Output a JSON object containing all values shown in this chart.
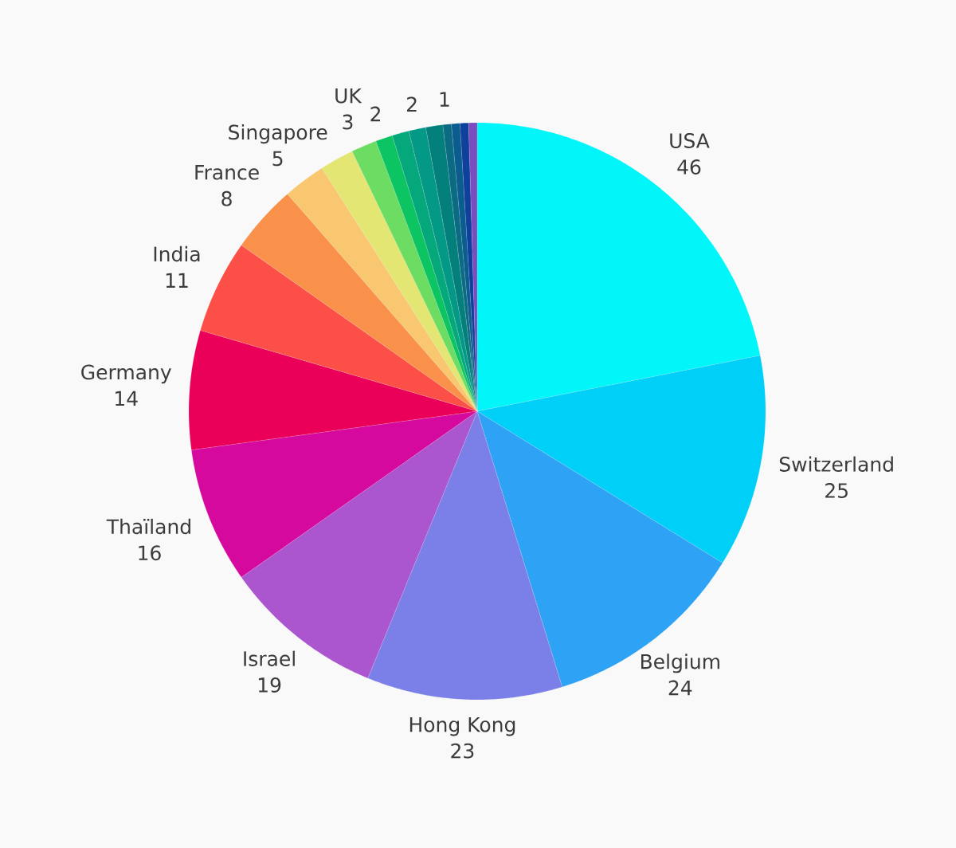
{
  "chart_data": {
    "type": "pie",
    "categories": [
      "USA",
      "Switzerland",
      "Belgium",
      "Hong Kong",
      "Israel",
      "Thaïland",
      "Germany",
      "India",
      "France",
      "Singapore",
      null,
      "UK",
      null,
      null,
      null,
      null,
      null,
      null,
      null,
      null
    ],
    "values": [
      46,
      25,
      24,
      23,
      19,
      16,
      14,
      11,
      8,
      5,
      4,
      3,
      2,
      2,
      2,
      2,
      1,
      1,
      1,
      1
    ],
    "value_labels": [
      "46",
      "25",
      "24",
      "23",
      "19",
      "16",
      "14",
      "11",
      "8",
      "5",
      null,
      "3",
      "2",
      null,
      "2",
      null,
      "1",
      null,
      null,
      null
    ],
    "colors": [
      "#00f6f8",
      "#00cff8",
      "#2ea3f5",
      "#7b80e8",
      "#ab56ce",
      "#d5099e",
      "#ea0058",
      "#fb4f47",
      "#f9914b",
      "#f8c76f",
      "#e3e672",
      "#6cdc63",
      "#0dc463",
      "#05a87a",
      "#049886",
      "#03807c",
      "#0b6b82",
      "#0b5c8f",
      "#0f409c",
      "#7b4cbe"
    ]
  }
}
